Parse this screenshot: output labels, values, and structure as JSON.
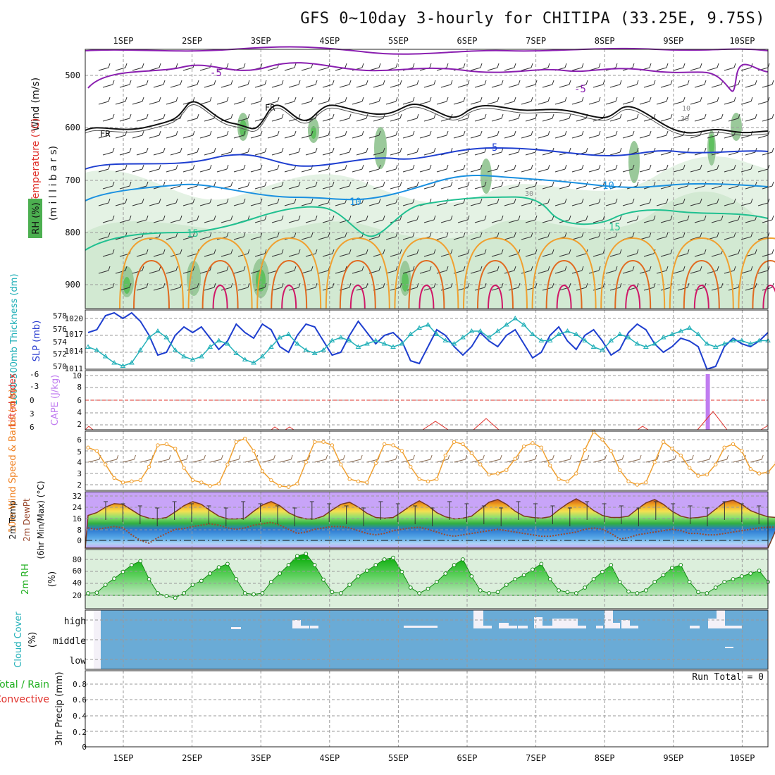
{
  "title": "GFS 0~10day 3-hourly for CHITIPA (33.25E, 9.75S)",
  "chart_data": {
    "type": "line",
    "days": [
      "1SEP",
      "2SEP",
      "3SEP",
      "4SEP",
      "5SEP",
      "6SEP",
      "7SEP",
      "8SEP",
      "9SEP",
      "10SEP"
    ],
    "panels": [
      {
        "id": "sounding",
        "ylabel_parts": [
          "Wind (m/s)",
          "Temperature (°C)",
          "(m i l l i b a r s)",
          "RH (%)"
        ],
        "y_ticks": [
          500,
          600,
          700,
          800,
          900
        ],
        "contour_labels": [
          "-5",
          "-5",
          "5",
          "10",
          "15",
          "10",
          "15",
          "10",
          "30",
          "30",
          "FR",
          "FR"
        ]
      },
      {
        "id": "thickness_slp",
        "ylabel_parts": [
          "1000-500mb Thickness (dm)",
          "SLP (mb)"
        ],
        "left_ticks": [
          "578",
          "576",
          "574",
          "572",
          "570"
        ],
        "right_ticks": [
          "1020",
          "1017",
          "1014",
          "1011"
        ],
        "series": [
          {
            "name": "SLP (mb)",
            "color": "#1f3fcf",
            "values": [
              1017.5,
              1018,
              1020.5,
              1021,
              1020,
              1021,
              1019.5,
              1017,
              1013.5,
              1014,
              1017,
              1018.5,
              1017.5,
              1018.5,
              1016.5,
              1014.5,
              1016,
              1019,
              1017.5,
              1016.5,
              1019,
              1018,
              1015,
              1014,
              1017,
              1019,
              1018.5,
              1016,
              1013.5,
              1014,
              1017,
              1019.5,
              1017.5,
              1015.5,
              1017,
              1017.5,
              1016,
              1012.5,
              1012,
              1015,
              1018,
              1017,
              1015,
              1013.5,
              1015,
              1017.5,
              1016,
              1015,
              1017,
              1018,
              1015.5,
              1013,
              1014,
              1017,
              1018.5,
              1016,
              1014.5,
              1017,
              1018,
              1016,
              1013.5,
              1014.5,
              1017.5,
              1019,
              1018,
              1015.5,
              1014,
              1015,
              1016.5,
              1016,
              1015,
              1011,
              1011.5,
              1015,
              1016.5,
              1015.5,
              1015,
              1016,
              1017.5
            ]
          },
          {
            "name": "1000-500mb Thickness (dm)",
            "color": "#22b0b8",
            "values": [
              573.5,
              573,
              572,
              571,
              570.5,
              571,
              573,
              575,
              576,
              575,
              573,
              572,
              571.5,
              572,
              573.5,
              574.5,
              574,
              572.5,
              571.5,
              571,
              572,
              573.5,
              575,
              575.5,
              574,
              573,
              572.5,
              573,
              574.5,
              575,
              574.5,
              573.5,
              574,
              574.5,
              574,
              573.5,
              574,
              575.5,
              576.5,
              577,
              575.5,
              574.5,
              574,
              575,
              576,
              576,
              575,
              576,
              577,
              578,
              577,
              575.5,
              574.5,
              574.5,
              575.5,
              576,
              575.5,
              574.5,
              573.5,
              573,
              574.5,
              575.5,
              575,
              574,
              573.5,
              574,
              575,
              575.5,
              576,
              576.5,
              575.5,
              574,
              573.5,
              574,
              574.5,
              574.5,
              574,
              574.5,
              574.5
            ]
          }
        ]
      },
      {
        "id": "cape_li",
        "ylabel_parts": [
          "Lifted Index",
          "CAPE (J/kg)"
        ],
        "left_ticks": [
          "-6",
          "-3",
          "0",
          "3",
          "6"
        ],
        "right_ticks": [
          "10",
          "8",
          "6",
          "4",
          "2"
        ],
        "series": [
          {
            "name": "CAPE (J/kg)",
            "color": "#c07cf0",
            "bar": {
              "x_day": 9.5,
              "value": 10
            }
          },
          {
            "name": "Lifted Index",
            "color": "#e0302a"
          }
        ]
      },
      {
        "id": "wind10m",
        "ylabel_parts": [
          "10m Wind Speed & Barbs (m/s)"
        ],
        "y_ticks": [
          "6",
          "5",
          "4",
          "3",
          "2"
        ],
        "series": [
          {
            "name": "10m Wind Speed",
            "color": "#f0a030",
            "values": [
              5.3,
              5,
              3.8,
              2.6,
              2.2,
              2.3,
              2.4,
              3.6,
              5.5,
              5.6,
              5.2,
              3.5,
              2.4,
              2.2,
              1.9,
              2.1,
              3.8,
              5.8,
              6.1,
              5,
              3.2,
              2.4,
              1.9,
              1.8,
              2.1,
              4,
              5.8,
              5.8,
              5.5,
              3.8,
              2.5,
              2.3,
              2.2,
              3.9,
              5.6,
              5.5,
              5,
              3.6,
              2.5,
              2.3,
              2.5,
              4.6,
              5.8,
              5.6,
              4.8,
              3.8,
              2.9,
              3,
              3.3,
              4.3,
              5.4,
              5.7,
              5.3,
              3.7,
              2.5,
              2.3,
              3,
              5.1,
              6.7,
              6,
              5,
              3.3,
              2.3,
              2,
              2.2,
              4,
              5.8,
              5.2,
              4.6,
              3.5,
              2.8,
              2.9,
              3.8,
              5.3,
              5.6,
              5,
              3.4,
              3,
              3.1,
              4,
              5.2
            ]
          }
        ]
      },
      {
        "id": "temperature",
        "ylabel_parts": [
          "2m Temp",
          "2m DewPt",
          "(6hr Min/Max) (°C)"
        ],
        "y_ticks": [
          "32",
          "24",
          "16",
          "8",
          "0"
        ],
        "series": [
          {
            "name": "2m Temp",
            "color": "#333333",
            "values": [
              18,
              20,
              24,
              26.5,
              26,
              22,
              18,
              16,
              15.5,
              16.5,
              20.5,
              25,
              28,
              26,
              21.5,
              17.5,
              15.5,
              15.5,
              16,
              21,
              25.5,
              28,
              25,
              20,
              17,
              15.5,
              15.5,
              17.5,
              22,
              26,
              27.5,
              24,
              19.5,
              16.5,
              16,
              16.5,
              20.5,
              25,
              28.5,
              25,
              20,
              17,
              15.5,
              16,
              17.5,
              22.5,
              27.5,
              29.5,
              26,
              21,
              17.5,
              16.5,
              16,
              17,
              22,
              26.5,
              30,
              26.5,
              21.5,
              18,
              16.5,
              16.5,
              17.5,
              22.5,
              27,
              29.5,
              26,
              21,
              17.5,
              16,
              16.5,
              17.5,
              22.5,
              27.5,
              29,
              26,
              21.5,
              19,
              17,
              16.5,
              23
            ]
          },
          {
            "name": "2m DewPt",
            "color": "#9a4a30",
            "values": [
              9,
              8,
              9,
              10,
              9,
              4,
              0,
              -2,
              2,
              5,
              8,
              8.5,
              10,
              11,
              12,
              11,
              9,
              8,
              9,
              11,
              12,
              13,
              11,
              8,
              5,
              6,
              8,
              9,
              10,
              10,
              9,
              7,
              5,
              4,
              5,
              7,
              8,
              9,
              9.5,
              8,
              6,
              4,
              3,
              4,
              5,
              6,
              7,
              8,
              7,
              6,
              5,
              4,
              3,
              3,
              4,
              5,
              6,
              8,
              9,
              8,
              5,
              1,
              2,
              4,
              5,
              6,
              7,
              8,
              7,
              5,
              5,
              4,
              4,
              5,
              6,
              7,
              8,
              9,
              9.5,
              9.5,
              9
            ]
          }
        ]
      },
      {
        "id": "rh2m",
        "ylabel_parts": [
          "2m RH",
          "(%)"
        ],
        "y_ticks": [
          "80",
          "60",
          "40",
          "20"
        ],
        "series": [
          {
            "name": "2m RH",
            "color": "#1aa81a",
            "values": [
              20,
              21,
              35,
              46,
              58,
              70,
              77,
              45,
              20,
              15,
              12,
              20,
              35,
              42,
              55,
              66,
              72,
              45,
              20,
              18,
              20,
              40,
              55,
              70,
              86,
              90,
              70,
              44,
              22,
              20,
              35,
              50,
              60,
              70,
              80,
              83,
              58,
              30,
              20,
              28,
              40,
              55,
              70,
              80,
              50,
              25,
              20,
              22,
              35,
              45,
              52,
              62,
              72,
              45,
              25,
              22,
              20,
              30,
              45,
              58,
              70,
              40,
              23,
              20,
              25,
              40,
              52,
              65,
              70,
              40,
              22,
              20,
              30,
              40,
              45,
              50,
              55,
              60,
              40
            ]
          }
        ]
      },
      {
        "id": "cloud",
        "ylabel_parts": [
          "Cloud Cover",
          "(%)"
        ],
        "y_ticks": [
          "high",
          "middle",
          "low"
        ]
      },
      {
        "id": "precip",
        "ylabel_parts": [
          "Total / Rain",
          "Convective",
          "3hr Precip (mm)"
        ],
        "y_ticks": [
          "0.8",
          "0.6",
          "0.4",
          "0.2",
          "0"
        ],
        "ylim": [
          0,
          0.9
        ],
        "annotation": "Run Total = 0",
        "series": [
          {
            "name": "Total / Rain",
            "color": "#22b022"
          },
          {
            "name": "Convective",
            "color": "#e0302a"
          }
        ]
      }
    ]
  },
  "colors": {
    "frame": "#222222",
    "grid": "#9a9a9a",
    "cloud_fill": "#6aabd6",
    "label_green": "#22b022",
    "label_red": "#e0302a",
    "label_orange": "#f08020",
    "label_purple": "#c07cf0",
    "label_blue": "#2c3fd0",
    "label_cyan": "#22b0b8"
  }
}
